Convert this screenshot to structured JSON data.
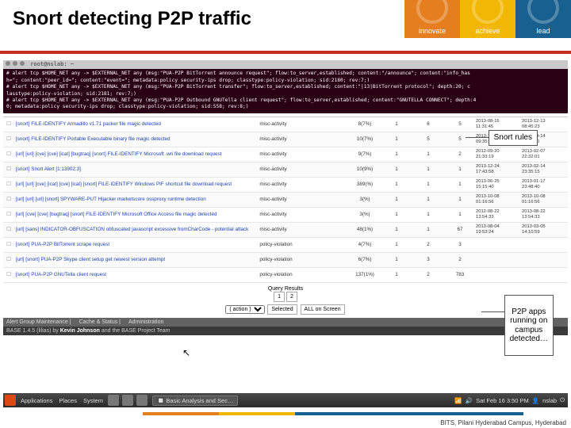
{
  "header": {
    "title": "Snort detecting P2P traffic",
    "logo_segments": [
      {
        "label": "innovate",
        "color": "#e57e1f"
      },
      {
        "label": "achieve",
        "color": "#f2b705"
      },
      {
        "label": "lead",
        "color": "#18608f"
      }
    ],
    "rule_color": "#c42f1f"
  },
  "terminal": {
    "titlebar": "root@nslab: ~",
    "lines": [
      "# alert tcp $HOME_NET any -> $EXTERNAL_NET any (msg:\"PUA-P2P BitTorrent announce request\"; flow:to_server,established; content:\"/announce\"; content:\"info_has",
      "h=\"; content:\"peer_id=\"; content:\"event=\"; metadata:policy security-ips drop; classtype:policy-violation; sid:2180; rev:7;)",
      "# alert tcp $HOME_NET any -> $EXTERNAL_NET any (msg:\"PUA-P2P BitTorrent transfer\"; flow:to_server,established; content:\"|13|BitTorrent protocol\"; depth:20; c",
      "lasstype:policy-violation; sid:2181; rev:7;)",
      "# alert tcp $HOME_NET any -> $EXTERNAL_NET any (msg:\"PUA-P2P Outbound GNUTella client request\"; flow:to_server,established; content:\"GNUTELLA CONNECT\"; depth:4",
      "0; metadata:policy security-ips drop; classtype:policy-violation; sid:558; rev:8;)"
    ],
    "bg": "#2a0015",
    "fg": "#ffffff"
  },
  "callouts": {
    "rules": "Snort rules",
    "p2p": "P2P apps\nrunning on\ncampus\ndetected…"
  },
  "alerts": {
    "link_color": "#1a3fb0",
    "rows": [
      {
        "sig": "[snort] FILE-IDENTIFY Armadillo v1.71 packer file magic detected",
        "cls": "misc-activity",
        "c1": "8(7%)",
        "c2": "1",
        "c3": "6",
        "c4": "5",
        "d1": "2013-08-16 11:31:45",
        "d2": "2013-12-13 08:45:23"
      },
      {
        "sig": "[snort] FILE-IDENTIFY Portable Executable binary file magic detected",
        "cls": "misc-activity",
        "c1": "10(7%)",
        "c2": "1",
        "c3": "5",
        "c4": "5",
        "d1": "2013-10-12 09:35:24",
        "d2": "2013-09-14 17:11:30"
      },
      {
        "sig": "[url] [url] [cve] [cve] [icat] [bugtraq] [snort] FILE-IDENTIFY Microsoft .wri file download request",
        "cls": "misc-activity",
        "c1": "9(7%)",
        "c2": "1",
        "c3": "1",
        "c4": "2",
        "d1": "2012-09-20 21:33:19",
        "d2": "2013-02-07 22:32:01"
      },
      {
        "sig": "[snort] Snort Alert [1:13902:3]",
        "cls": "misc-activity",
        "c1": "10(9%)",
        "c2": "1",
        "c3": "1",
        "c4": "1",
        "d1": "2013-12-24 17:43:58",
        "d2": "2013-02-14 23:35:15"
      },
      {
        "sig": "[url] [url] [cve] [icat] [cve] [icat] [snort] FILE-IDENTIFY Windows PIF shortcut file download request",
        "cls": "misc-activity",
        "c1": "389(%)",
        "c2": "1",
        "c3": "1",
        "c4": "1",
        "d1": "2013-06-25 15:15:40",
        "d2": "2013-01-17 23:48:40"
      },
      {
        "sig": "[url] [url] [url] [snort] SPYWARE-PUT Hijacker marketscore ossproxy runtime detection",
        "cls": "misc-activity",
        "c1": "3(%)",
        "c2": "1",
        "c3": "1",
        "c4": "1",
        "d1": "2013-10-08 01:16:56",
        "d2": "2013-10-08 01:16:56"
      },
      {
        "sig": "[url] [cve] [cve] [bugtraq] [snort] FILE-IDENTIFY Microsoft Office Access file magic detected",
        "cls": "misc-activity",
        "c1": "3(%)",
        "c2": "1",
        "c3": "1",
        "c4": "1",
        "d1": "2012-08-22 13:54:33",
        "d2": "2013-08-22 13:54:33"
      },
      {
        "sig": "[url] [sans] INDICATOR-OBFUSCATION obfuscated javascript excessive fromCharCode - potential attack",
        "cls": "misc-activity",
        "c1": "48(1%)",
        "c2": "1",
        "c3": "1",
        "c4": "67",
        "d1": "2013-08-04 19:53:24",
        "d2": "2013-03-05 14:10:59"
      },
      {
        "sig": "[snort] PUA-P2P BitTorrent scrape request",
        "cls": "policy-violation",
        "c1": "4(7%)",
        "c2": "1",
        "c3": "2",
        "c4": "3",
        "d1": "",
        "d2": ""
      },
      {
        "sig": "[url] [snort] PUA-P2P Skype client setup get newest version attempt",
        "cls": "policy-violation",
        "c1": "6(7%)",
        "c2": "1",
        "c3": "3",
        "c4": "2",
        "d1": "",
        "d2": ""
      },
      {
        "sig": "[snort] PUA-P2P GNUTella client request",
        "cls": "policy-violation",
        "c1": "137(1%)",
        "c2": "1",
        "c3": "2",
        "c4": "783",
        "d1": "",
        "d2": ""
      }
    ]
  },
  "pager": {
    "label": "Query Results",
    "pages": [
      "1",
      "2"
    ],
    "action_label": "( action )",
    "buttons": [
      "Selected",
      "ALL on Screen"
    ]
  },
  "basebar": {
    "items": [
      "Alert Group Maintenance",
      "Cache & Status",
      "Administration"
    ],
    "credit_prefix": "BASE 1.4.5 (lilias) by ",
    "credit_name": "Kevin Johnson",
    "credit_suffix": " and the BASE Project Team"
  },
  "taskbar": {
    "menus": [
      "Applications",
      "Places",
      "System"
    ],
    "window": "Basic Analysis and Sec…",
    "user": "nslab",
    "clock": "Sat Feb 16  3:50 PM"
  },
  "footer": {
    "colors": [
      "#e57e1f",
      "#f2b705",
      "#18608f"
    ],
    "text": "BITS, Pilani Hyderabad Campus, Hyderabad"
  }
}
